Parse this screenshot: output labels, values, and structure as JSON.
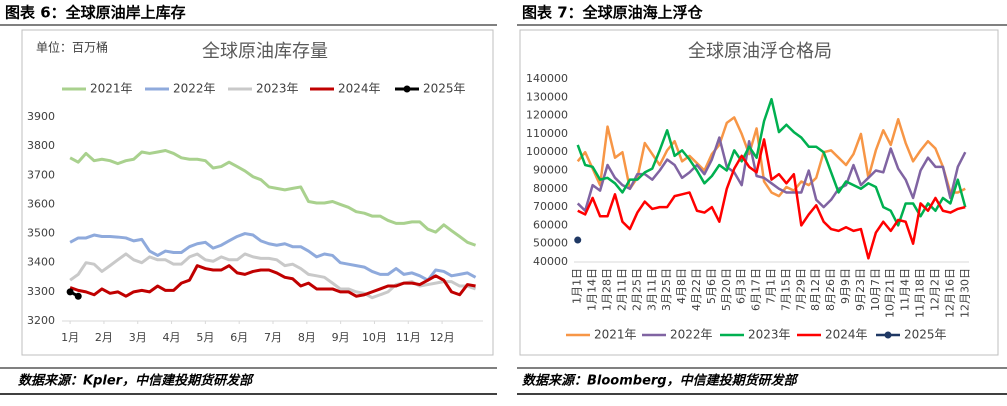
{
  "chart_data": [
    {
      "type": "line",
      "caption": "图表 6：全球原油岸上库存",
      "title": "全球原油库存量",
      "unit": "单位：百万桶",
      "source": "数据来源：Kpler，中信建投期货研发部",
      "legend": "top",
      "grid": false,
      "x": [
        1.0,
        1.24,
        1.47,
        1.71,
        1.94,
        2.18,
        2.41,
        2.65,
        2.88,
        3.12,
        3.35,
        3.59,
        3.82,
        4.06,
        4.29,
        4.53,
        4.76,
        5.0,
        5.23,
        5.47,
        5.7,
        5.94,
        6.17,
        6.41,
        6.64,
        6.88,
        7.11,
        7.35,
        7.58,
        7.82,
        8.05,
        8.29,
        8.52,
        8.76,
        8.99,
        9.23,
        9.46,
        9.7,
        9.93,
        10.17,
        10.4,
        10.64,
        10.87,
        11.11,
        11.34,
        11.58,
        11.81,
        12.05,
        12.28,
        12.52,
        12.75,
        12.99
      ],
      "xlim": [
        0.76,
        13.21
      ],
      "xticks": [
        {
          "value": 1,
          "label": "1月"
        },
        {
          "value": 2,
          "label": "2月"
        },
        {
          "value": 3,
          "label": "3月"
        },
        {
          "value": 4,
          "label": "4月"
        },
        {
          "value": 5,
          "label": "5月"
        },
        {
          "value": 6,
          "label": "6月"
        },
        {
          "value": 7,
          "label": "7月"
        },
        {
          "value": 8,
          "label": "8月"
        },
        {
          "value": 9,
          "label": "9月"
        },
        {
          "value": 10,
          "label": "10月"
        },
        {
          "value": 11,
          "label": "11月"
        },
        {
          "value": 12,
          "label": "12月"
        }
      ],
      "ylim": [
        3200,
        3900
      ],
      "yticks": [
        3200,
        3300,
        3400,
        3500,
        3600,
        3700,
        3800,
        3900
      ],
      "series": [
        {
          "name": "2021年",
          "color": "#a9d18e",
          "values": [
            3760,
            3745,
            3775,
            3750,
            3755,
            3750,
            3740,
            3750,
            3755,
            3780,
            3775,
            3780,
            3785,
            3775,
            3760,
            3755,
            3755,
            3750,
            3725,
            3730,
            3745,
            3730,
            3715,
            3695,
            3685,
            3660,
            3655,
            3650,
            3655,
            3660,
            3610,
            3605,
            3605,
            3610,
            3600,
            3590,
            3575,
            3570,
            3560,
            3560,
            3545,
            3535,
            3535,
            3540,
            3540,
            3515,
            3505,
            3530,
            3510,
            3490,
            3470,
            3460
          ]
        },
        {
          "name": "2022年",
          "color": "#8faadc",
          "values": [
            3470,
            3485,
            3485,
            3495,
            3490,
            3490,
            3488,
            3485,
            3475,
            3480,
            3440,
            3425,
            3440,
            3435,
            3435,
            3455,
            3465,
            3470,
            3450,
            3460,
            3475,
            3490,
            3500,
            3495,
            3475,
            3465,
            3460,
            3465,
            3455,
            3455,
            3440,
            3420,
            3430,
            3425,
            3400,
            3395,
            3390,
            3385,
            3370,
            3360,
            3360,
            3380,
            3360,
            3365,
            3355,
            3340,
            3375,
            3370,
            3355,
            3360,
            3365,
            3350
          ]
        },
        {
          "name": "2023年",
          "color": "#c9c9c9",
          "values": [
            3340,
            3360,
            3400,
            3395,
            3370,
            3390,
            3410,
            3430,
            3410,
            3400,
            3420,
            3410,
            3410,
            3395,
            3395,
            3420,
            3430,
            3410,
            3405,
            3420,
            3410,
            3410,
            3430,
            3420,
            3415,
            3415,
            3410,
            3390,
            3395,
            3380,
            3360,
            3355,
            3350,
            3330,
            3310,
            3310,
            3300,
            3295,
            3280,
            3290,
            3300,
            3325,
            3330,
            3335,
            3320,
            3325,
            3330,
            3335,
            3335,
            3320,
            3320,
            3310
          ]
        },
        {
          "name": "2024年",
          "color": "#c00000",
          "values": [
            3315,
            3305,
            3300,
            3290,
            3310,
            3295,
            3300,
            3285,
            3300,
            3305,
            3300,
            3320,
            3305,
            3305,
            3330,
            3340,
            3390,
            3380,
            3375,
            3375,
            3390,
            3365,
            3360,
            3370,
            3375,
            3375,
            3365,
            3350,
            3345,
            3320,
            3330,
            3310,
            3310,
            3310,
            3300,
            3300,
            3285,
            3290,
            3300,
            3310,
            3320,
            3320,
            3330,
            3330,
            3325,
            3340,
            3355,
            3340,
            3300,
            3290,
            3325,
            3320
          ]
        },
        {
          "name": "2025年",
          "color": "#000000",
          "marker": true,
          "values": [
            3300,
            3285,
            null,
            null,
            null,
            null,
            null,
            null,
            null,
            null,
            null,
            null,
            null,
            null,
            null,
            null,
            null,
            null,
            null,
            null,
            null,
            null,
            null,
            null,
            null,
            null,
            null,
            null,
            null,
            null,
            null,
            null,
            null,
            null,
            null,
            null,
            null,
            null,
            null,
            null,
            null,
            null,
            null,
            null,
            null,
            null,
            null,
            null,
            null,
            null,
            null,
            null
          ]
        }
      ]
    },
    {
      "type": "line",
      "caption": "图表 7：全球原油海上浮仓",
      "title": "全球原油浮仓格局",
      "source": "数据来源：Bloomberg，中信建投期货研发部",
      "legend": "bottom",
      "grid": false,
      "categories": [
        "1月1日",
        null,
        "1月14日",
        null,
        "1月28日",
        null,
        "2月11日",
        null,
        "2月25日",
        null,
        "3月11日",
        null,
        "3月25日",
        null,
        "4月8日",
        null,
        "4月22日",
        null,
        "5月6日",
        null,
        "5月20日",
        null,
        "6月3日",
        null,
        "6月17日",
        null,
        "7月1日",
        null,
        "7月15日",
        null,
        "7月29日",
        null,
        "8月12日",
        null,
        "8月26日",
        null,
        "9月9日",
        null,
        "9月23日",
        null,
        "10月7日",
        null,
        "10月21日",
        null,
        "11月4日",
        null,
        "11月18日",
        null,
        "12月2日",
        null,
        "12月16日",
        null,
        "12月30日"
      ],
      "ylim": [
        40000,
        140000
      ],
      "yticks": [
        40000,
        50000,
        60000,
        70000,
        80000,
        90000,
        100000,
        110000,
        120000,
        130000,
        140000
      ],
      "series": [
        {
          "name": "2021年",
          "color": "#f79646",
          "values": [
            95000,
            100000,
            91000,
            82000,
            114000,
            97000,
            100000,
            80000,
            86000,
            105000,
            99000,
            93000,
            101000,
            106000,
            95000,
            98000,
            94000,
            90000,
            99000,
            104000,
            116000,
            119000,
            110000,
            99000,
            113000,
            84000,
            78000,
            76000,
            81000,
            79000,
            84000,
            82000,
            86000,
            100000,
            101000,
            97000,
            93000,
            99000,
            110000,
            86000,
            101000,
            112000,
            104000,
            118000,
            105000,
            95000,
            101000,
            106000,
            102000,
            92000,
            78000,
            78000,
            80000
          ]
        },
        {
          "name": "2022年",
          "color": "#8064a2",
          "values": [
            72000,
            68000,
            82000,
            79000,
            93000,
            86000,
            82000,
            80000,
            88000,
            88000,
            85000,
            90000,
            96000,
            93000,
            86000,
            89000,
            93000,
            88000,
            96000,
            108000,
            92000,
            89000,
            82000,
            106000,
            87000,
            86000,
            83000,
            80000,
            78000,
            78000,
            78000,
            90000,
            74000,
            70000,
            74000,
            80000,
            82000,
            93000,
            82000,
            86000,
            90000,
            89000,
            102000,
            91000,
            85000,
            75000,
            90000,
            97000,
            92000,
            92000,
            75000,
            92000,
            100000
          ]
        },
        {
          "name": "2023年",
          "color": "#00b050",
          "values": [
            104000,
            93000,
            92000,
            85000,
            86000,
            83000,
            78000,
            85000,
            85000,
            89000,
            91000,
            101000,
            112000,
            98000,
            101000,
            96000,
            90000,
            83000,
            87000,
            93000,
            90000,
            101000,
            95000,
            103000,
            97000,
            117000,
            129000,
            111000,
            115000,
            111000,
            108000,
            103000,
            103000,
            100000,
            89000,
            78000,
            84000,
            82000,
            80000,
            83000,
            81000,
            70000,
            68000,
            60000,
            72000,
            72000,
            65000,
            72000,
            68000,
            75000,
            72000,
            85000,
            70000
          ]
        },
        {
          "name": "2024年",
          "color": "#ff0000",
          "values": [
            68000,
            66000,
            75000,
            65000,
            65000,
            77000,
            62000,
            58000,
            67000,
            73000,
            69000,
            70000,
            70000,
            76000,
            77000,
            78000,
            68000,
            67000,
            70000,
            62000,
            80000,
            91000,
            98000,
            92000,
            89000,
            107000,
            85000,
            88000,
            83000,
            88000,
            60000,
            66000,
            71000,
            62000,
            58000,
            57000,
            59000,
            57000,
            58000,
            42000,
            56000,
            62000,
            57000,
            63000,
            62000,
            50000,
            72000,
            68000,
            75000,
            68000,
            67000,
            69000,
            70000
          ]
        },
        {
          "name": "2025年",
          "color": "#1f3864",
          "marker": true,
          "values": [
            52000,
            null,
            null,
            null,
            null,
            null,
            null,
            null,
            null,
            null,
            null,
            null,
            null,
            null,
            null,
            null,
            null,
            null,
            null,
            null,
            null,
            null,
            null,
            null,
            null,
            null,
            null,
            null,
            null,
            null,
            null,
            null,
            null,
            null,
            null,
            null,
            null,
            null,
            null,
            null,
            null,
            null,
            null,
            null,
            null,
            null,
            null,
            null,
            null,
            null,
            null,
            null,
            null
          ]
        }
      ]
    }
  ]
}
